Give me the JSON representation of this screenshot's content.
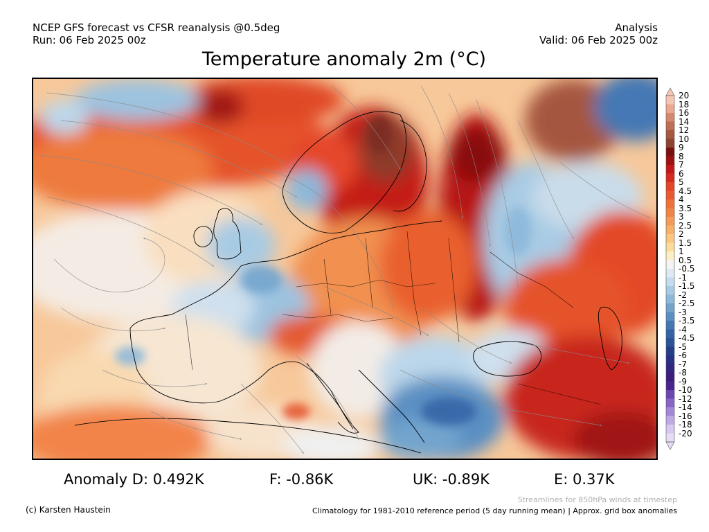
{
  "header": {
    "model_line": "NCEP GFS forecast vs CFSR reanalysis @0.5deg",
    "run_line": "Run: 06 Feb 2025 00z",
    "mode": "Analysis",
    "valid_line": "Valid: 06 Feb 2025 00z"
  },
  "title": "Temperature anomaly 2m (°C)",
  "colorbar": {
    "labels": [
      "20",
      "18",
      "16",
      "14",
      "12",
      "10",
      "9",
      "8",
      "7",
      "6",
      "5",
      "4.5",
      "4",
      "3.5",
      "3",
      "2.5",
      "2",
      "1.5",
      "1",
      "0.5",
      "-0.5",
      "-1",
      "-1.5",
      "-2",
      "-2.5",
      "-3",
      "-3.5",
      "-4",
      "-4.5",
      "-5",
      "-6",
      "-7",
      "-8",
      "-9",
      "-10",
      "-12",
      "-14",
      "-16",
      "-18",
      "-20"
    ],
    "colors": [
      "#f5c6b4",
      "#eba88f",
      "#d58a70",
      "#bd6e54",
      "#a5573f",
      "#8e4430",
      "#7a1010",
      "#a01010",
      "#c41818",
      "#d82a20",
      "#e44428",
      "#ea5a30",
      "#ef7038",
      "#f28448",
      "#f59a58",
      "#f8b068",
      "#fac680",
      "#fcdc9a",
      "#fdefc4",
      "#f4f4f4",
      "#ddeaf5",
      "#c4dcee",
      "#a8cbe4",
      "#8cb8da",
      "#72a4ce",
      "#5a8fc2",
      "#4478b4",
      "#3464a6",
      "#2a5498",
      "#243f88",
      "#2a2f88",
      "#332582",
      "#3c1c7c",
      "#4a2590",
      "#6a46b0",
      "#8864c6",
      "#a488d8",
      "#bfaae6",
      "#d6c8f0",
      "#e6dcf6"
    ]
  },
  "stats": {
    "d": "Anomaly D: 0.492K",
    "f": "F: -0.86K",
    "uk": "UK: -0.89K",
    "e": "E: 0.37K"
  },
  "footer": {
    "credit": "(c) Karsten Haustein",
    "note": "Streamlines for 850hPa winds at timestep",
    "climatology": "Climatology for 1981-2010 reference period (5 day running mean) | Approx. grid box anomalies"
  }
}
